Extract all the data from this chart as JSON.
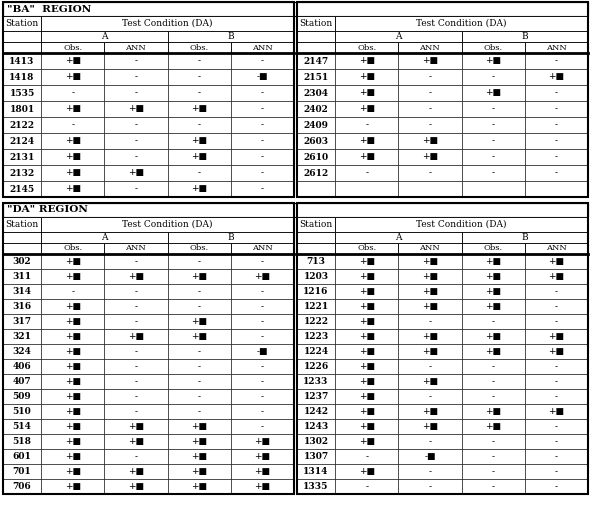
{
  "ba_region": {
    "title": "\"BA\"  REGION",
    "left": {
      "stations": [
        "1413",
        "1418",
        "1535",
        "1801",
        "2122",
        "2124",
        "2131",
        "2132",
        "2145"
      ],
      "data": [
        [
          "+■",
          "-",
          "-",
          "-"
        ],
        [
          "+■",
          "-",
          "-",
          "-■"
        ],
        [
          "-",
          "-",
          "-",
          "-"
        ],
        [
          "+■",
          "+■",
          "+■",
          "-"
        ],
        [
          "-",
          "-",
          "-",
          "-"
        ],
        [
          "+■",
          "-",
          "+■",
          "-"
        ],
        [
          "+■",
          "-",
          "+■",
          "-"
        ],
        [
          "+■",
          "+■",
          "-",
          "-"
        ],
        [
          "+■",
          "-",
          "+■",
          "-"
        ]
      ]
    },
    "right": {
      "stations": [
        "2147",
        "2151",
        "2304",
        "2402",
        "2409",
        "2603",
        "2610",
        "2612",
        ""
      ],
      "data": [
        [
          "+■",
          "+■",
          "+■",
          "-"
        ],
        [
          "+■",
          "-",
          "-",
          "+■"
        ],
        [
          "+■",
          "-",
          "+■",
          "-"
        ],
        [
          "+■",
          "-",
          "-",
          "-"
        ],
        [
          "-",
          "-",
          "-",
          "-"
        ],
        [
          "+■",
          "+■",
          "-",
          "-"
        ],
        [
          "+■",
          "+■",
          "-",
          "-"
        ],
        [
          "-",
          "-",
          "-",
          "-"
        ],
        [
          "",
          "",
          "",
          ""
        ]
      ]
    }
  },
  "da_region": {
    "title": "\"DA\" REGION",
    "left": {
      "stations": [
        "302",
        "311",
        "314",
        "316",
        "317",
        "321",
        "324",
        "406",
        "407",
        "509",
        "510",
        "514",
        "518",
        "601",
        "701",
        "706"
      ],
      "data": [
        [
          "+■",
          "-",
          "-",
          "-"
        ],
        [
          "+■",
          "+■",
          "+■",
          "+■"
        ],
        [
          "-",
          "-",
          "-",
          "-"
        ],
        [
          "+■",
          "-",
          "-",
          "-"
        ],
        [
          "+■",
          "-",
          "+■",
          "-"
        ],
        [
          "+■",
          "+■",
          "+■",
          "-"
        ],
        [
          "+■",
          "-",
          "-",
          "-■"
        ],
        [
          "+■",
          "-",
          "-",
          "-"
        ],
        [
          "+■",
          "-",
          "-",
          "-"
        ],
        [
          "+■",
          "-",
          "-",
          "-"
        ],
        [
          "+■",
          "-",
          "-",
          "-"
        ],
        [
          "+■",
          "+■",
          "+■",
          "-"
        ],
        [
          "+■",
          "+■",
          "+■",
          "+■"
        ],
        [
          "+■",
          "-",
          "+■",
          "+■"
        ],
        [
          "+■",
          "+■",
          "+■",
          "+■"
        ],
        [
          "+■",
          "+■",
          "+■",
          "+■"
        ]
      ]
    },
    "right": {
      "stations": [
        "713",
        "1203",
        "1216",
        "1221",
        "1222",
        "1223",
        "1224",
        "1226",
        "1233",
        "1237",
        "1242",
        "1243",
        "1302",
        "1307",
        "1314",
        "1335"
      ],
      "data": [
        [
          "+■",
          "+■",
          "+■",
          "+■"
        ],
        [
          "+■",
          "+■",
          "+■",
          "+■"
        ],
        [
          "+■",
          "+■",
          "+■",
          "-"
        ],
        [
          "+■",
          "+■",
          "+■",
          "-"
        ],
        [
          "+■",
          "-",
          "-",
          "-"
        ],
        [
          "+■",
          "+■",
          "+■",
          "+■"
        ],
        [
          "+■",
          "+■",
          "+■",
          "+■"
        ],
        [
          "+■",
          "-",
          "-",
          "-"
        ],
        [
          "+■",
          "+■",
          "-",
          "-"
        ],
        [
          "+■",
          "-",
          "-",
          "-"
        ],
        [
          "+■",
          "+■",
          "+■",
          "+■"
        ],
        [
          "+■",
          "+■",
          "+■",
          "-"
        ],
        [
          "+■",
          "-",
          "-",
          "-"
        ],
        [
          "-",
          "-■",
          "-",
          "-"
        ],
        [
          "+■",
          "-",
          "-",
          "-"
        ],
        [
          "-",
          "-",
          "-",
          "-"
        ]
      ]
    }
  },
  "figsize": [
    5.91,
    5.23
  ],
  "dpi": 100
}
